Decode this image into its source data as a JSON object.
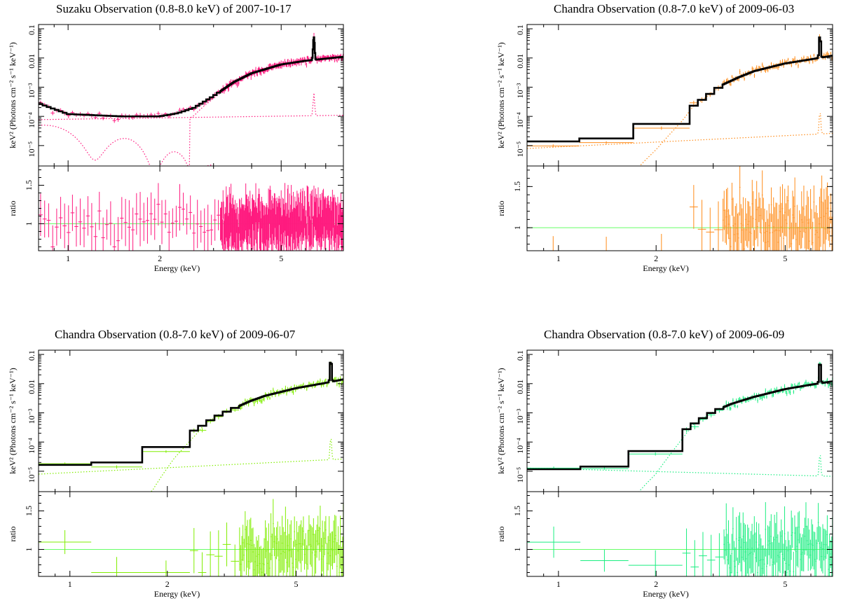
{
  "figure": {
    "xlabel": "Energy (keV)",
    "ylabel_top": "keV² (Photons cm⁻² s⁻¹ keV⁻¹)",
    "ylabel_bottom": "ratio",
    "ratio_line_color": "#66ff66"
  },
  "chart_data": [
    {
      "type": "line",
      "title": "Suzaku Observation (0.8-8.0 keV) of 2007-10-17",
      "color": "#ff1a7f",
      "xscale": "log",
      "xlim": [
        0.8,
        8.0
      ],
      "xticks": [
        1,
        2,
        5
      ],
      "top": {
        "yscale": "log",
        "ylim": [
          2e-06,
          0.14
        ],
        "ytick_labels": [
          "10⁻⁵",
          "10⁻⁴",
          "10⁻³",
          "0.01",
          "0.1"
        ],
        "model_x": [
          0.8,
          1.0,
          1.5,
          2.0,
          2.3,
          2.6,
          3.0,
          3.5,
          4.0,
          5.0,
          6.0,
          7.0,
          8.0
        ],
        "model_y": [
          0.00028,
          0.00012,
          0.0001,
          0.0001,
          0.00013,
          0.0002,
          0.0005,
          0.0015,
          0.003,
          0.006,
          0.008,
          0.0095,
          0.011
        ],
        "line_feature_keV": 6.4
      },
      "bottom": {
        "ylim": [
          0.65,
          1.75
        ],
        "yticks": [
          1,
          1.5
        ],
        "unity": 1.0
      }
    },
    {
      "type": "line",
      "title": "Chandra Observation (0.8-7.0 keV) of 2009-06-03",
      "color": "#ff8c1a",
      "xscale": "log",
      "xlim": [
        0.8,
        7.0
      ],
      "xticks": [
        1,
        2,
        5
      ],
      "top": {
        "yscale": "log",
        "ylim": [
          2e-06,
          0.14
        ],
        "ytick_labels": [
          "10⁻⁵",
          "10⁻⁴",
          "10⁻³",
          "0.01",
          "0.1"
        ],
        "model_x": [
          0.8,
          1.2,
          1.6,
          2.0,
          2.4,
          2.8,
          3.2,
          3.6,
          4.0,
          5.0,
          6.0,
          7.0
        ],
        "model_y": [
          1.3e-05,
          1.5e-05,
          2e-05,
          4.5e-05,
          0.00012,
          0.0004,
          0.0012,
          0.0022,
          0.0035,
          0.0065,
          0.009,
          0.012
        ],
        "line_feature_keV": 6.4
      },
      "bottom": {
        "ylim": [
          0.72,
          1.75
        ],
        "yticks": [
          1,
          1.5
        ],
        "unity": 1.0
      }
    },
    {
      "type": "line",
      "title": "Chandra Observation (0.8-7.0 keV) of 2009-06-07",
      "color": "#80ee00",
      "xscale": "log",
      "xlim": [
        0.8,
        7.0
      ],
      "xticks": [
        1,
        2,
        5
      ],
      "top": {
        "yscale": "log",
        "ylim": [
          2e-06,
          0.14
        ],
        "ytick_labels": [
          "10⁻⁵",
          "10⁻⁴",
          "10⁻³",
          "0.01",
          "0.1"
        ],
        "model_x": [
          0.8,
          1.4,
          1.8,
          2.1,
          2.5,
          2.8,
          3.2,
          3.6,
          4.0,
          5.0,
          6.0,
          7.0
        ],
        "model_y": [
          1.5e-05,
          2e-05,
          3e-05,
          0.00011,
          0.0003,
          0.0007,
          0.0014,
          0.0025,
          0.0038,
          0.007,
          0.01,
          0.014
        ],
        "line_feature_keV": 6.4
      },
      "bottom": {
        "ylim": [
          0.65,
          1.75
        ],
        "yticks": [
          1,
          1.5
        ],
        "unity": 1.0
      }
    },
    {
      "type": "line",
      "title": "Chandra Observation (0.8-7.0 keV) of 2009-06-09",
      "color": "#1aee80",
      "xscale": "log",
      "xlim": [
        0.8,
        7.0
      ],
      "xticks": [
        1,
        2,
        5
      ],
      "top": {
        "yscale": "log",
        "ylim": [
          2e-06,
          0.14
        ],
        "ytick_labels": [
          "10⁻⁵",
          "10⁻⁴",
          "10⁻³",
          "0.01",
          "0.1"
        ],
        "model_x": [
          0.8,
          1.1,
          1.5,
          2.0,
          2.3,
          2.6,
          3.0,
          3.4,
          4.0,
          5.0,
          6.0,
          7.0
        ],
        "model_y": [
          1e-05,
          1.3e-05,
          1.5e-05,
          5e-05,
          0.00015,
          0.0004,
          0.0011,
          0.002,
          0.0035,
          0.0065,
          0.0092,
          0.012
        ],
        "line_feature_keV": 6.4
      },
      "bottom": {
        "ylim": [
          0.65,
          1.75
        ],
        "yticks": [
          1,
          1.5
        ],
        "unity": 1.0
      }
    }
  ]
}
